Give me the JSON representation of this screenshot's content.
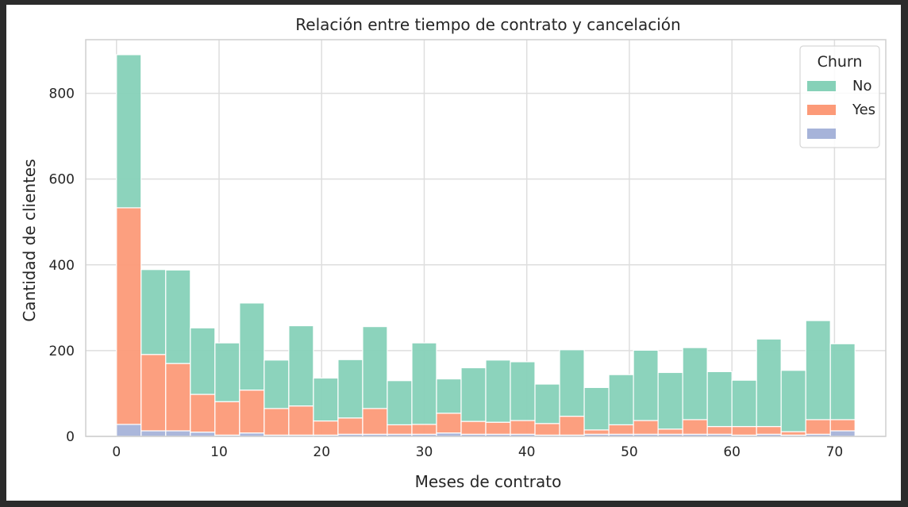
{
  "chart_data": {
    "type": "bar",
    "stacked": true,
    "title": "Relación entre tiempo de contrato y cancelación",
    "xlabel": "Meses de contrato",
    "ylabel": "Cantidad de clientes",
    "xlim": [
      -3,
      75
    ],
    "ylim": [
      0,
      925
    ],
    "xticks": [
      0,
      10,
      20,
      30,
      40,
      50,
      60,
      70
    ],
    "yticks": [
      0,
      200,
      400,
      600,
      800
    ],
    "grid": true,
    "bin_width": 2.4,
    "x": [
      0,
      2.4,
      4.8,
      7.2,
      9.6,
      12,
      14.4,
      16.8,
      19.2,
      21.6,
      24,
      26.4,
      28.8,
      31.2,
      33.6,
      36,
      38.4,
      40.8,
      43.2,
      45.6,
      48,
      50.4,
      52.8,
      55.2,
      57.6,
      60,
      62.4,
      64.8,
      67.2,
      69.6
    ],
    "series": [
      {
        "name": "",
        "color": "#a6b3d9",
        "values": [
          28,
          13,
          13,
          10,
          3,
          8,
          3,
          3,
          3,
          5,
          5,
          5,
          5,
          8,
          5,
          5,
          5,
          3,
          3,
          5,
          5,
          5,
          5,
          5,
          5,
          3,
          5,
          3,
          5,
          13
        ]
      },
      {
        "name": "Yes",
        "color": "#fc9a78",
        "values": [
          505,
          178,
          157,
          88,
          78,
          100,
          62,
          68,
          33,
          38,
          60,
          22,
          23,
          46,
          30,
          28,
          32,
          27,
          44,
          10,
          22,
          32,
          12,
          34,
          18,
          20,
          18,
          8,
          34,
          26
        ]
      },
      {
        "name": "No",
        "color": "#86d1b8",
        "values": [
          357,
          198,
          218,
          155,
          137,
          203,
          113,
          187,
          100,
          136,
          191,
          103,
          190,
          80,
          125,
          145,
          137,
          92,
          155,
          99,
          117,
          164,
          132,
          168,
          128,
          108,
          204,
          143,
          231,
          177
        ]
      }
    ],
    "legend": {
      "title": "Churn",
      "placement": "top-right"
    }
  }
}
